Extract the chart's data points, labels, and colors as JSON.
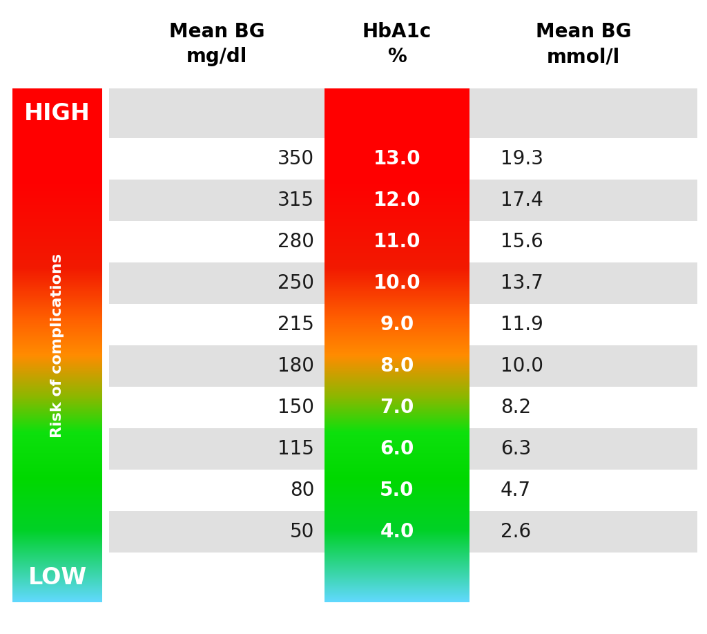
{
  "header_col1": "Mean BG\nmg/dl",
  "header_col2": "HbA1c\n%",
  "header_col3": "Mean BG\nmmol/l",
  "rows": [
    {
      "mean_bg_mg": "350",
      "hba1c": "13.0",
      "mean_bg_mmol": "19.3"
    },
    {
      "mean_bg_mg": "315",
      "hba1c": "12.0",
      "mean_bg_mmol": "17.4"
    },
    {
      "mean_bg_mg": "280",
      "hba1c": "11.0",
      "mean_bg_mmol": "15.6"
    },
    {
      "mean_bg_mg": "250",
      "hba1c": "10.0",
      "mean_bg_mmol": "13.7"
    },
    {
      "mean_bg_mg": "215",
      "hba1c": "9.0",
      "mean_bg_mmol": "11.9"
    },
    {
      "mean_bg_mg": "180",
      "hba1c": "8.0",
      "mean_bg_mmol": "10.0"
    },
    {
      "mean_bg_mg": "150",
      "hba1c": "7.0",
      "mean_bg_mmol": "8.2"
    },
    {
      "mean_bg_mg": "115",
      "hba1c": "6.0",
      "mean_bg_mmol": "6.3"
    },
    {
      "mean_bg_mg": "80",
      "hba1c": "5.0",
      "mean_bg_mmol": "4.7"
    },
    {
      "mean_bg_mg": "50",
      "hba1c": "4.0",
      "mean_bg_mmol": "2.6"
    }
  ],
  "high_label": "HIGH",
  "low_label": "LOW",
  "side_label": "Risk of complications",
  "bg_color": "#ffffff",
  "row_gray_color": "#e0e0e0",
  "row_white_color": "#ffffff",
  "text_color_dark": "#1a1a1a",
  "text_color_white": "#ffffff",
  "header_fontsize": 20,
  "data_fontsize": 20,
  "side_label_fontsize": 16,
  "high_low_fontsize": 24,
  "gradient_colors": [
    [
      0.0,
      [
        1.0,
        0.0,
        0.0
      ]
    ],
    [
      0.18,
      [
        1.0,
        0.0,
        0.0
      ]
    ],
    [
      0.35,
      [
        0.95,
        0.1,
        0.0
      ]
    ],
    [
      0.45,
      [
        1.0,
        0.38,
        0.0
      ]
    ],
    [
      0.52,
      [
        1.0,
        0.55,
        0.0
      ]
    ],
    [
      0.6,
      [
        0.55,
        0.72,
        0.0
      ]
    ],
    [
      0.67,
      [
        0.05,
        0.88,
        0.05
      ]
    ],
    [
      0.76,
      [
        0.0,
        0.85,
        0.0
      ]
    ],
    [
      0.86,
      [
        0.0,
        0.82,
        0.15
      ]
    ],
    [
      1.0,
      [
        0.38,
        0.85,
        1.0
      ]
    ]
  ]
}
